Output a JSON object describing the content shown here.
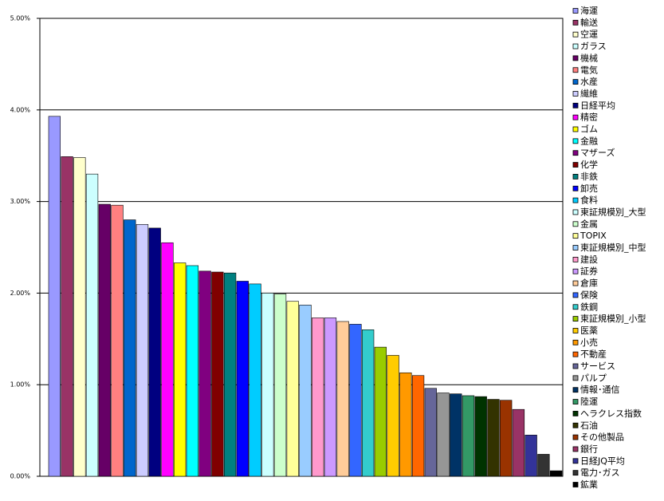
{
  "chart_data": {
    "type": "bar",
    "categories": [
      "海運",
      "輸送",
      "空運",
      "ガラス",
      "機械",
      "電気",
      "水産",
      "繊維",
      "日経平均",
      "精密",
      "ゴム",
      "金融",
      "マザーズ",
      "化学",
      "非鉄",
      "卸売",
      "食料",
      "東証規模別_大型",
      "金属",
      "TOPIX",
      "東証規模別_中型",
      "建設",
      "証券",
      "倉庫",
      "保険",
      "鉄鋼",
      "東証規模別_小型",
      "医薬",
      "小売",
      "不動産",
      "サービス",
      "パルプ",
      "情報･通信",
      "陸運",
      "ヘラクレス指数",
      "石油",
      "その他製品",
      "銀行",
      "日経JQ平均",
      "電力･ガス",
      "鉱業"
    ],
    "values": [
      3.93,
      3.49,
      3.48,
      3.3,
      2.97,
      2.96,
      2.8,
      2.75,
      2.71,
      2.55,
      2.33,
      2.3,
      2.24,
      2.23,
      2.22,
      2.13,
      2.1,
      2.0,
      1.99,
      1.91,
      1.87,
      1.73,
      1.73,
      1.69,
      1.66,
      1.6,
      1.41,
      1.32,
      1.13,
      1.1,
      0.96,
      0.91,
      0.9,
      0.88,
      0.87,
      0.84,
      0.83,
      0.73,
      0.45,
      0.24,
      0.06
    ],
    "colors": [
      "#9999ff",
      "#993366",
      "#ffffcc",
      "#ccffff",
      "#660066",
      "#ff8080",
      "#0066cc",
      "#ccccff",
      "#000080",
      "#ff00ff",
      "#ffff00",
      "#00ffff",
      "#800080",
      "#800000",
      "#008080",
      "#0000ff",
      "#00ccff",
      "#ccffff",
      "#ccffcc",
      "#ffff99",
      "#99ccff",
      "#ff99cc",
      "#cc99ff",
      "#ffcc99",
      "#3366ff",
      "#33cccc",
      "#99cc00",
      "#ffcc00",
      "#ff9900",
      "#ff6600",
      "#666699",
      "#969696",
      "#003366",
      "#339966",
      "#003300",
      "#333300",
      "#993300",
      "#993366",
      "#333399",
      "#333333",
      "#000000"
    ],
    "ylim": [
      0,
      5
    ],
    "yticks": [
      {
        "value": 0,
        "label": "0.00%"
      },
      {
        "value": 1,
        "label": "1.00%"
      },
      {
        "value": 2,
        "label": "2.00%"
      },
      {
        "value": 3,
        "label": "3.00%"
      },
      {
        "value": 4,
        "label": "4.00%"
      },
      {
        "value": 5,
        "label": "5.00%"
      }
    ],
    "grid": true
  }
}
